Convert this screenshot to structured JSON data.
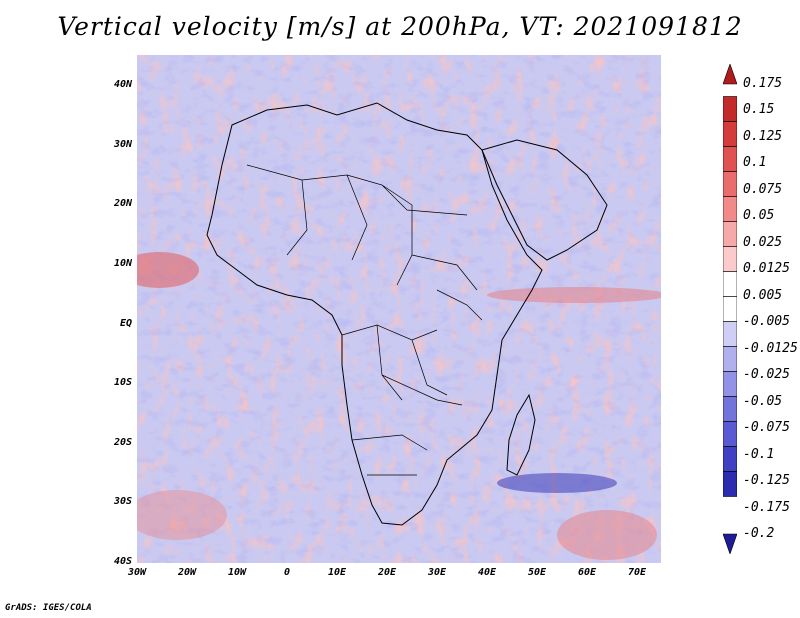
{
  "title": "Vertical velocity [m/s] at 200hPa, VT: 2021091812",
  "credit": "GrADS: IGES/COLA",
  "map": {
    "region": "Africa",
    "lon_range": [
      -30,
      75
    ],
    "lat_range": [
      -40,
      45
    ],
    "y_ticks": [
      "40N",
      "30N",
      "20N",
      "10N",
      "EQ",
      "10S",
      "20S",
      "30S",
      "40S"
    ],
    "x_ticks": [
      "30W",
      "20W",
      "10W",
      "0",
      "10E",
      "20E",
      "30E",
      "40E",
      "50E",
      "60E",
      "70E"
    ]
  },
  "colorbar": {
    "labels": [
      "0.175",
      "0.15",
      "0.125",
      "0.1",
      "0.075",
      "0.05",
      "0.025",
      "0.0125",
      "0.005",
      "-0.005",
      "-0.0125",
      "-0.025",
      "-0.05",
      "-0.075",
      "-0.1",
      "-0.125",
      "-0.175",
      "-0.2"
    ],
    "colors": [
      "#b01c1c",
      "#c42a2a",
      "#d43c3c",
      "#e05252",
      "#ea6c6c",
      "#f28a8a",
      "#f7a9a9",
      "#fbcaca",
      "#ffffff",
      "#ffffff",
      "#cfcff5",
      "#b0b0ee",
      "#9292e6",
      "#7373dc",
      "#5a5ad2",
      "#4040c4",
      "#2c2cb0",
      "#1c1c98"
    ]
  }
}
